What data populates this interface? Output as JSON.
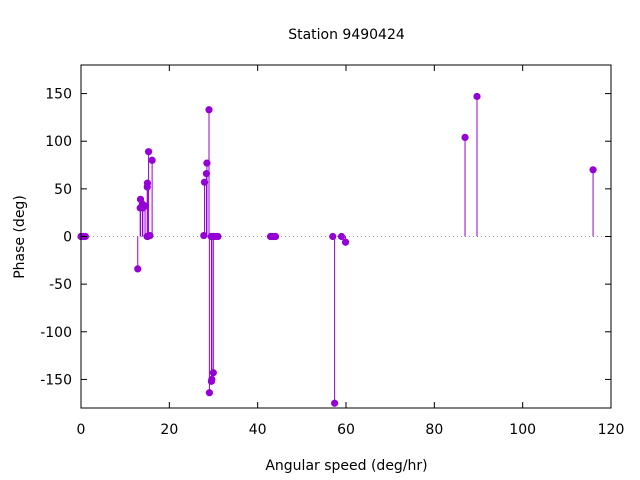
{
  "chart_data": {
    "type": "scatter",
    "style": "impulses with points",
    "title": "Station 9490424",
    "xlabel": "Angular speed (deg/hr)",
    "ylabel": "Phase (deg)",
    "xlim": [
      0,
      120
    ],
    "ylim": [
      -180,
      180
    ],
    "xticks": [
      0,
      20,
      40,
      60,
      80,
      100,
      120
    ],
    "yticks": [
      -150,
      -100,
      -50,
      0,
      50,
      100,
      150
    ],
    "zero_line": true,
    "grid": false,
    "color": "#9400d3",
    "points": [
      {
        "x": 0.0,
        "y": 0
      },
      {
        "x": 0.04,
        "y": 0
      },
      {
        "x": 0.08,
        "y": 0
      },
      {
        "x": 0.54,
        "y": 0
      },
      {
        "x": 0.55,
        "y": 0
      },
      {
        "x": 1.0,
        "y": 0
      },
      {
        "x": 12.85,
        "y": -34
      },
      {
        "x": 13.4,
        "y": 30
      },
      {
        "x": 13.47,
        "y": 39
      },
      {
        "x": 13.9,
        "y": 34
      },
      {
        "x": 14.0,
        "y": 30
      },
      {
        "x": 14.5,
        "y": 32
      },
      {
        "x": 14.96,
        "y": 0
      },
      {
        "x": 15.0,
        "y": 52
      },
      {
        "x": 15.04,
        "y": 56
      },
      {
        "x": 15.1,
        "y": 0
      },
      {
        "x": 15.3,
        "y": 89
      },
      {
        "x": 15.6,
        "y": 1
      },
      {
        "x": 16.1,
        "y": 80
      },
      {
        "x": 27.8,
        "y": 1
      },
      {
        "x": 27.97,
        "y": 57
      },
      {
        "x": 28.4,
        "y": 66
      },
      {
        "x": 28.51,
        "y": 77
      },
      {
        "x": 28.98,
        "y": 133
      },
      {
        "x": 29.07,
        "y": -164
      },
      {
        "x": 29.46,
        "y": 0
      },
      {
        "x": 29.53,
        "y": -152
      },
      {
        "x": 29.62,
        "y": -150
      },
      {
        "x": 29.96,
        "y": -143
      },
      {
        "x": 30.0,
        "y": 0
      },
      {
        "x": 30.08,
        "y": 0
      },
      {
        "x": 30.6,
        "y": 0
      },
      {
        "x": 31.0,
        "y": 0
      },
      {
        "x": 42.9,
        "y": 0
      },
      {
        "x": 43.0,
        "y": 0
      },
      {
        "x": 43.5,
        "y": 0
      },
      {
        "x": 44.0,
        "y": 0
      },
      {
        "x": 44.03,
        "y": 0
      },
      {
        "x": 57.0,
        "y": 0
      },
      {
        "x": 57.42,
        "y": -175
      },
      {
        "x": 58.98,
        "y": 0
      },
      {
        "x": 59.9,
        "y": -6
      },
      {
        "x": 86.95,
        "y": 104
      },
      {
        "x": 89.66,
        "y": 147
      },
      {
        "x": 115.94,
        "y": 70
      }
    ]
  }
}
